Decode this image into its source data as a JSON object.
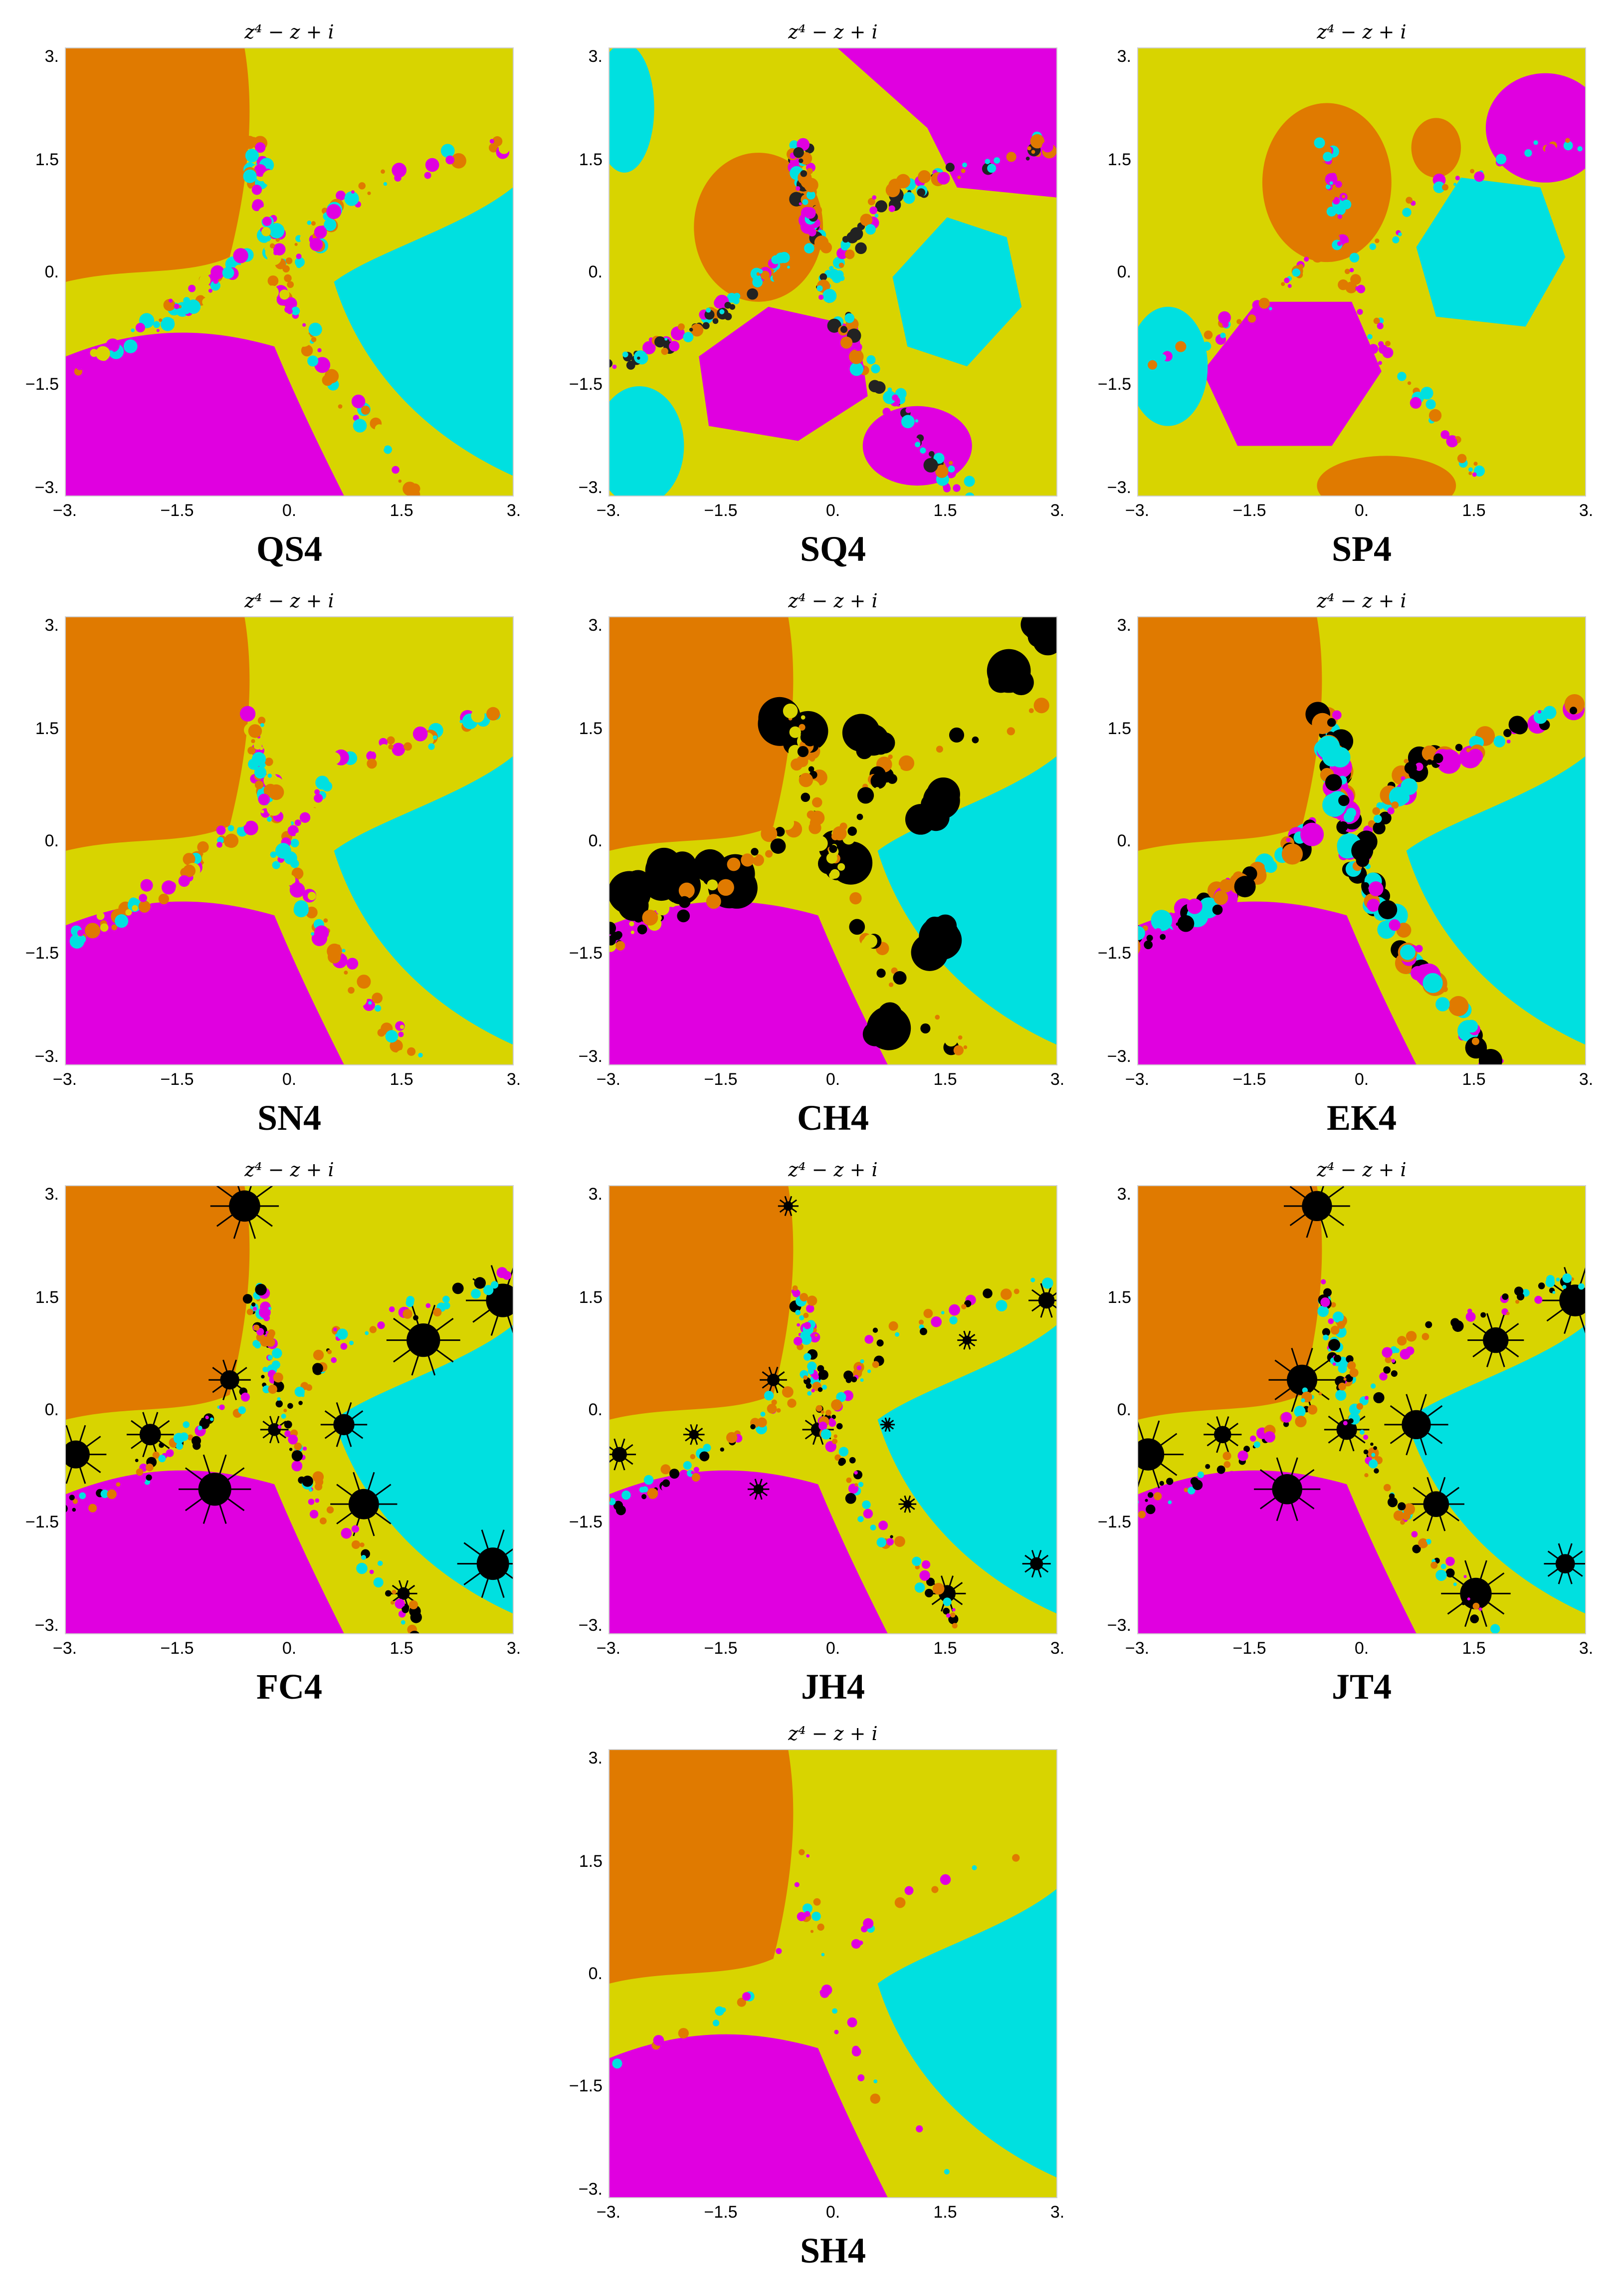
{
  "title_text": "z⁴ − z + i",
  "axis": {
    "ticks": [
      "−3.",
      "−1.5",
      "0.",
      "1.5",
      "3."
    ],
    "yticks_top_to_bottom": [
      "3.",
      "1.5",
      "0.",
      "−1.5",
      "−3."
    ]
  },
  "colors": {
    "orange": "#E07A00",
    "yellow": "#D8D400",
    "magenta": "#E000E0",
    "cyan": "#00E0E0",
    "black": "#000000"
  },
  "panels": [
    {
      "label": "QS4",
      "style": "fringe"
    },
    {
      "label": "SQ4",
      "style": "chaotic"
    },
    {
      "label": "SP4",
      "style": "bubbles"
    },
    {
      "label": "SN4",
      "style": "fringe"
    },
    {
      "label": "CH4",
      "style": "blobs"
    },
    {
      "label": "EK4",
      "style": "dots"
    },
    {
      "label": "FC4",
      "style": "flowers"
    },
    {
      "label": "JH4",
      "style": "flowers-small"
    },
    {
      "label": "JT4",
      "style": "flowers"
    },
    {
      "label": "SH4",
      "style": "smooth"
    }
  ]
}
